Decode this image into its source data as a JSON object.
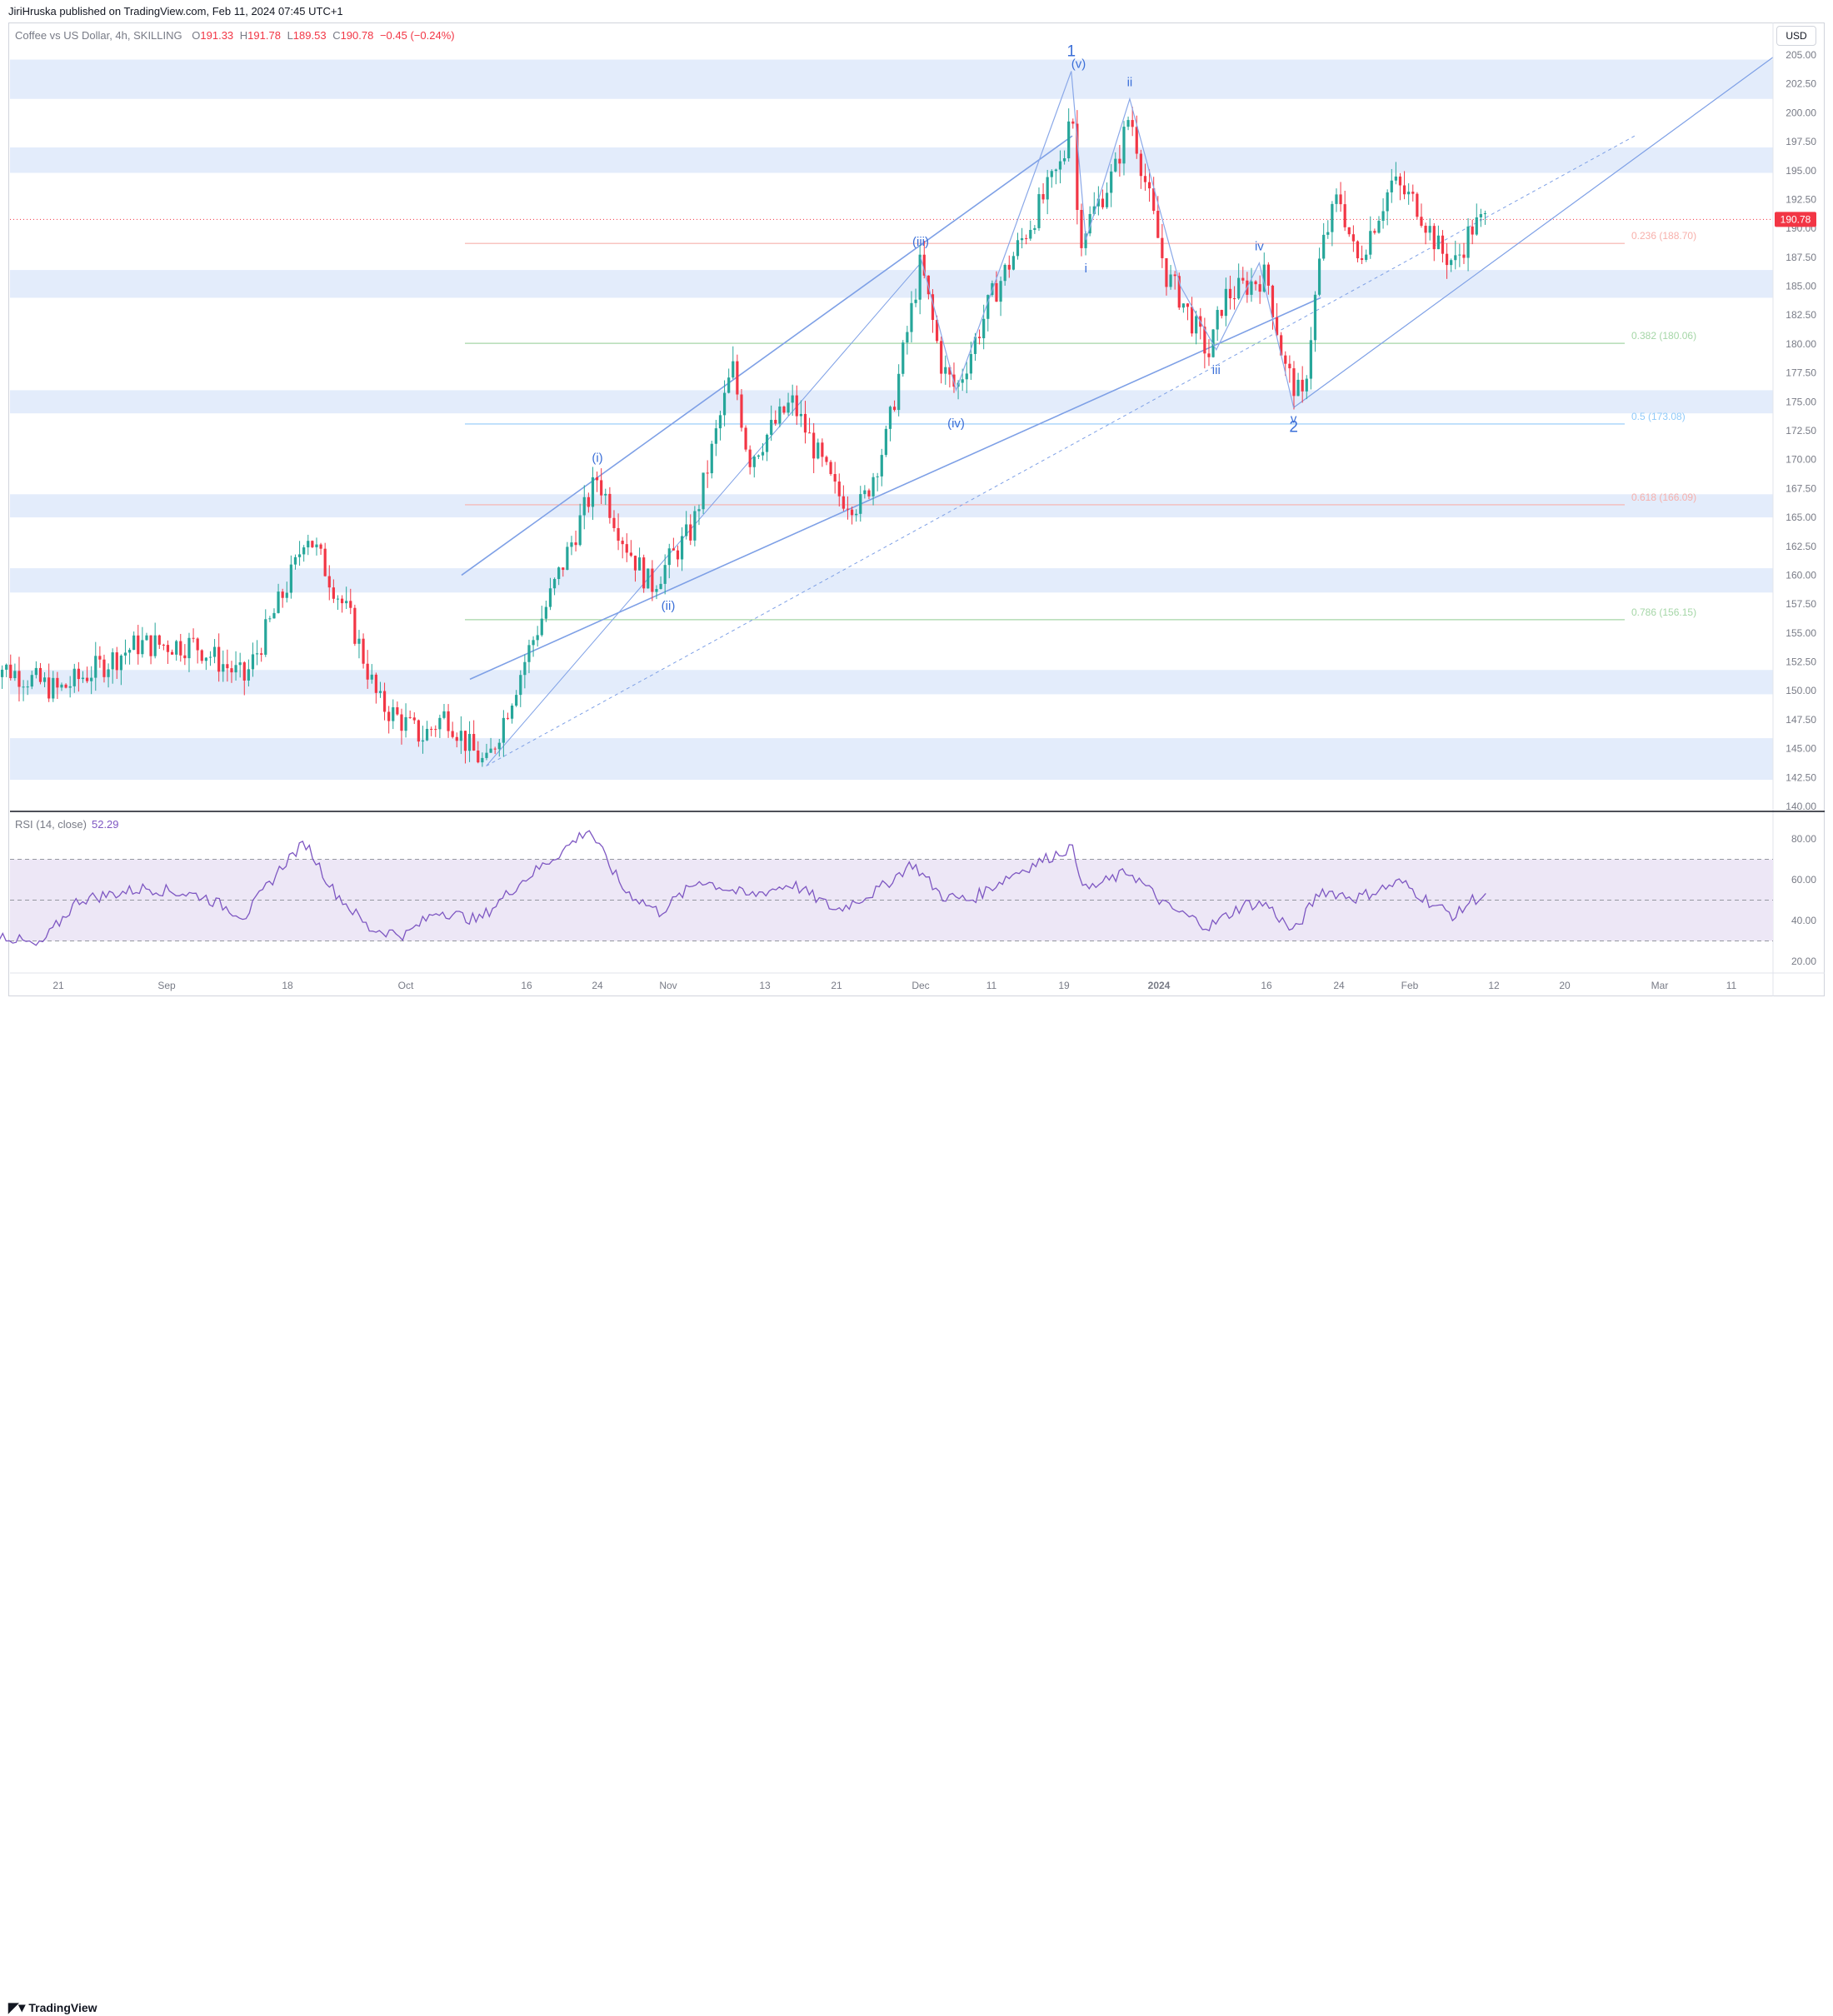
{
  "header": {
    "published": "JiriHruska published on TradingView.com, Feb 11, 2024 07:45 UTC+1"
  },
  "symbol": {
    "name": "Coffee vs US Dollar, 4h, SKILLING",
    "open_label": "O",
    "open": "191.33",
    "high_label": "H",
    "high": "191.78",
    "low_label": "L",
    "low": "189.53",
    "close_label": "C",
    "close": "190.78",
    "change": "−0.45 (−0.24%)"
  },
  "currency_button": "USD",
  "price_tag": "190.78",
  "rsi": {
    "label": "RSI (14, close)",
    "value": "52.29"
  },
  "footer": {
    "logo_text": "TradingView",
    "logo_icon": "tradingview-logo-icon"
  },
  "colors": {
    "up": "#26a69a",
    "down": "#f23645",
    "zone": "#e3ecfb",
    "wave": "#3b6fd8",
    "rsi_line": "#7e57c2",
    "rsi_band": "#ede7f6",
    "price_line": "#f23645"
  },
  "chart_data": [
    {
      "type": "candlestick",
      "title": "Coffee vs US Dollar, 4h, SKILLING",
      "price_axis": {
        "ylim": [
          140,
          206
        ],
        "ticks": [
          "205.00",
          "202.50",
          "200.00",
          "197.50",
          "195.00",
          "192.50",
          "190.00",
          "187.50",
          "185.00",
          "182.50",
          "180.00",
          "177.50",
          "175.00",
          "172.50",
          "170.00",
          "167.50",
          "165.00",
          "162.50",
          "160.00",
          "157.50",
          "155.00",
          "152.50",
          "150.00",
          "147.50",
          "145.00",
          "142.50",
          "140.00"
        ]
      },
      "time_axis": {
        "ticks": [
          "21",
          "Sep",
          "18",
          "Oct",
          "16",
          "24",
          "Nov",
          "13",
          "21",
          "Dec",
          "11",
          "19",
          "2024",
          "16",
          "24",
          "Feb",
          "12",
          "20",
          "Mar",
          "11"
        ]
      },
      "close_anchors": [
        {
          "t": "Aug 14",
          "y": 152.5
        },
        {
          "t": "Aug 21",
          "y": 150.0
        },
        {
          "t": "Aug 29",
          "y": 154.0
        },
        {
          "t": "Sep 5",
          "y": 154.0
        },
        {
          "t": "Sep 12",
          "y": 151.0
        },
        {
          "t": "Sep 19",
          "y": 161.0
        },
        {
          "t": "Sep 20",
          "y": 164.0
        },
        {
          "t": "Sep 25",
          "y": 156.0
        },
        {
          "t": "Sep 28",
          "y": 149.0
        },
        {
          "t": "Oct 3",
          "y": 146.0
        },
        {
          "t": "Oct 6",
          "y": 148.0
        },
        {
          "t": "Oct 9",
          "y": 145.0
        },
        {
          "t": "Oct 11",
          "y": 143.5
        },
        {
          "t": "Oct 16",
          "y": 153.0
        },
        {
          "t": "Oct 24",
          "y": 168.5
        },
        {
          "t": "Oct 27",
          "y": 163.0
        },
        {
          "t": "Oct 30",
          "y": 159.0
        },
        {
          "t": "Nov 4",
          "y": 164.0
        },
        {
          "t": "Nov 9",
          "y": 178.0
        },
        {
          "t": "Nov 11",
          "y": 170.0
        },
        {
          "t": "Nov 16",
          "y": 175.0
        },
        {
          "t": "Nov 21",
          "y": 167.0
        },
        {
          "t": "Nov 24",
          "y": 166.0
        },
        {
          "t": "Nov 27",
          "y": 172.0
        },
        {
          "t": "Dec 1",
          "y": 187.0
        },
        {
          "t": "Dec 4",
          "y": 178.0
        },
        {
          "t": "Dec 6",
          "y": 176.0
        },
        {
          "t": "Dec 11",
          "y": 184.0
        },
        {
          "t": "Dec 15",
          "y": 190.0
        },
        {
          "t": "Dec 19",
          "y": 196.0
        },
        {
          "t": "Dec 20",
          "y": 202.5
        },
        {
          "t": "Dec 21",
          "y": 189.0
        },
        {
          "t": "Dec 26",
          "y": 195.0
        },
        {
          "t": "Dec 28",
          "y": 200.0
        },
        {
          "t": "Jan 2",
          "y": 186.0
        },
        {
          "t": "Jan 4",
          "y": 184.0
        },
        {
          "t": "Jan 8",
          "y": 179.0
        },
        {
          "t": "Jan 10",
          "y": 184.0
        },
        {
          "t": "Jan 16",
          "y": 186.0
        },
        {
          "t": "Jan 18",
          "y": 178.0
        },
        {
          "t": "Jan 20",
          "y": 175.0
        },
        {
          "t": "Jan 22",
          "y": 188.0
        },
        {
          "t": "Jan 24",
          "y": 193.0
        },
        {
          "t": "Jan 26",
          "y": 187.0
        },
        {
          "t": "Jan 30",
          "y": 194.0
        },
        {
          "t": "Feb 2",
          "y": 192.0
        },
        {
          "t": "Feb 5",
          "y": 188.0
        },
        {
          "t": "Feb 7",
          "y": 187.0
        },
        {
          "t": "Feb 9",
          "y": 190.0
        },
        {
          "t": "Feb 11",
          "y": 190.78
        }
      ],
      "last_price": 190.78,
      "zones": [
        {
          "from": 201.2,
          "to": 204.6
        },
        {
          "from": 194.8,
          "to": 197.0
        },
        {
          "from": 184.0,
          "to": 186.4
        },
        {
          "from": 174.0,
          "to": 176.0
        },
        {
          "from": 165.0,
          "to": 167.0
        },
        {
          "from": 158.5,
          "to": 160.6
        },
        {
          "from": 149.7,
          "to": 151.8
        },
        {
          "from": 142.3,
          "to": 145.9
        }
      ],
      "fibonacci": [
        {
          "label": "0.236 (188.70)",
          "value": 188.7,
          "color": "#f7b0ab"
        },
        {
          "label": "0.382 (180.06)",
          "value": 180.06,
          "color": "#a5d6a7"
        },
        {
          "label": "0.5 (173.08)",
          "value": 173.08,
          "color": "#90caf9"
        },
        {
          "label": "0.618 (166.09)",
          "value": 166.09,
          "color": "#f7b0ab"
        },
        {
          "label": "0.786 (156.15)",
          "value": 156.15,
          "color": "#a5d6a7"
        }
      ],
      "wave_labels": [
        {
          "text": "(i)",
          "t": "Oct 24",
          "y": 169.8
        },
        {
          "text": "(ii)",
          "t": "Nov 1",
          "y": 157.0
        },
        {
          "text": "(iii)",
          "t": "Dec 1",
          "y": 188.5
        },
        {
          "text": "(iv)",
          "t": "Dec 6",
          "y": 172.8
        },
        {
          "text": "(v)",
          "t": "Dec 21",
          "y": 203.9
        },
        {
          "text": "1",
          "t": "Dec 20",
          "y": 204.9
        },
        {
          "text": "i",
          "t": "Dec 22",
          "y": 186.2
        },
        {
          "text": "ii",
          "t": "Dec 28",
          "y": 202.3
        },
        {
          "text": "iii",
          "t": "Jan 9",
          "y": 177.4
        },
        {
          "text": "iv",
          "t": "Jan 15",
          "y": 188.1
        },
        {
          "text": "v",
          "t": "Jan 19",
          "y": 173.2
        },
        {
          "text": "2",
          "t": "Jan 19",
          "y": 172.4
        }
      ]
    },
    {
      "type": "line",
      "title": "RSI (14, close)",
      "ylim": [
        15,
        87
      ],
      "ticks": [
        "80.00",
        "60.00",
        "40.00",
        "20.00"
      ],
      "band": [
        30,
        70
      ],
      "midline": 50,
      "last_value": 52.29,
      "anchors": [
        {
          "t": "Aug 14",
          "y": 35
        },
        {
          "t": "Aug 19",
          "y": 27
        },
        {
          "t": "Aug 23",
          "y": 50
        },
        {
          "t": "Aug 30",
          "y": 56
        },
        {
          "t": "Sep 6",
          "y": 52
        },
        {
          "t": "Sep 12",
          "y": 42
        },
        {
          "t": "Sep 18",
          "y": 70
        },
        {
          "t": "Sep 20",
          "y": 78
        },
        {
          "t": "Sep 23",
          "y": 55
        },
        {
          "t": "Sep 27",
          "y": 36
        },
        {
          "t": "Oct 1",
          "y": 33
        },
        {
          "t": "Oct 5",
          "y": 45
        },
        {
          "t": "Oct 10",
          "y": 40
        },
        {
          "t": "Oct 15",
          "y": 58
        },
        {
          "t": "Oct 20",
          "y": 74
        },
        {
          "t": "Oct 23",
          "y": 85
        },
        {
          "t": "Oct 27",
          "y": 55
        },
        {
          "t": "Oct 31",
          "y": 44
        },
        {
          "t": "Nov 5",
          "y": 60
        },
        {
          "t": "Nov 11",
          "y": 52
        },
        {
          "t": "Nov 16",
          "y": 58
        },
        {
          "t": "Nov 21",
          "y": 45
        },
        {
          "t": "Nov 26",
          "y": 55
        },
        {
          "t": "Nov 30",
          "y": 68
        },
        {
          "t": "Dec 4",
          "y": 52
        },
        {
          "t": "Dec 8",
          "y": 50
        },
        {
          "t": "Dec 13",
          "y": 62
        },
        {
          "t": "Dec 20",
          "y": 76
        },
        {
          "t": "Dec 22",
          "y": 55
        },
        {
          "t": "Dec 28",
          "y": 64
        },
        {
          "t": "Jan 2",
          "y": 47
        },
        {
          "t": "Jan 8",
          "y": 37
        },
        {
          "t": "Jan 13",
          "y": 48
        },
        {
          "t": "Jan 16",
          "y": 48
        },
        {
          "t": "Jan 19",
          "y": 34
        },
        {
          "t": "Jan 22",
          "y": 55
        },
        {
          "t": "Jan 26",
          "y": 51
        },
        {
          "t": "Jan 31",
          "y": 59
        },
        {
          "t": "Feb 4",
          "y": 48
        },
        {
          "t": "Feb 7",
          "y": 42
        },
        {
          "t": "Feb 9",
          "y": 50
        },
        {
          "t": "Feb 11",
          "y": 52.29
        }
      ]
    }
  ]
}
